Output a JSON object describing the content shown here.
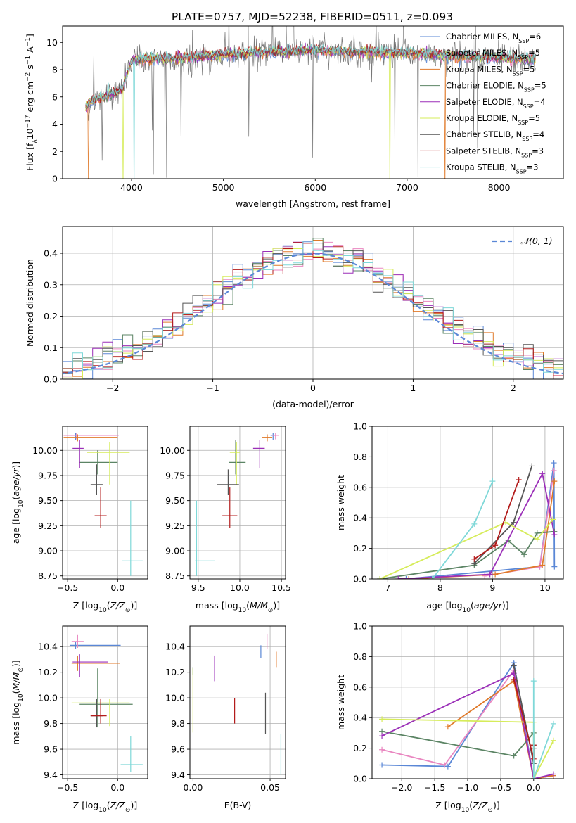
{
  "figure_title": "PLATE=0757, MJD=52238, FIBERID=0511, z=0.093",
  "colors": {
    "Chabrier MILES": "#5a87d6",
    "Salpeter MILES": "#e986c0",
    "Kroupa MILES": "#e07a2a",
    "Chabrier ELODIE": "#5b8464",
    "Salpeter ELODIE": "#9b2fb8",
    "Kroupa ELODIE": "#d6ec5a",
    "Chabrier STELIB": "#555555",
    "Salpeter STELIB": "#b31b1b",
    "Kroupa STELIB": "#7fd8d8",
    "gaussian": "#5a87d6",
    "grid": "#b0b0b0"
  },
  "chart_data": [
    {
      "id": "spectrum",
      "type": "line",
      "title": "PLATE=0757, MJD=52238, FIBERID=0511, z=0.093",
      "xlabel": "wavelength [Angstrom, rest frame]",
      "ylabel": "Flux [f_λ 10^-17 erg cm^-2 s^-1 A^-1]",
      "xlim": [
        3250,
        8700
      ],
      "ylim": [
        0,
        11.2
      ],
      "xticks": [
        4000,
        5000,
        6000,
        7000,
        8000
      ],
      "yticks": [
        0,
        2,
        4,
        6,
        8,
        10
      ],
      "grid": false,
      "legend_position": "top-right",
      "legend": [
        {
          "name": "Chabrier MILES",
          "n_ssp": "6"
        },
        {
          "name": "Salpeter MILES",
          "n_ssp": "5"
        },
        {
          "name": "Kroupa MILES",
          "n_ssp": "5"
        },
        {
          "name": "Chabrier ELODIE",
          "n_ssp": "5"
        },
        {
          "name": "Salpeter ELODIE",
          "n_ssp": "4"
        },
        {
          "name": "Kroupa ELODIE",
          "n_ssp": "5"
        },
        {
          "name": "Chabrier STELIB",
          "n_ssp": "4"
        },
        {
          "name": "Salpeter STELIB",
          "n_ssp": "3"
        },
        {
          "name": "Kroupa STELIB",
          "n_ssp": "3"
        }
      ],
      "data_trend": {
        "x": [
          3500,
          3600,
          3700,
          3800,
          3900,
          4000,
          4200,
          4500,
          5000,
          5500,
          6000,
          6500,
          7000,
          7500,
          8000,
          8400
        ],
        "y": [
          5.2,
          5.8,
          6.0,
          6.2,
          6.4,
          8.6,
          8.7,
          8.7,
          9.0,
          9.3,
          9.4,
          9.3,
          9.2,
          9.0,
          8.9,
          8.7
        ]
      },
      "model_trend": {
        "x": [
          3500,
          3600,
          3700,
          3800,
          3900,
          4000,
          4200,
          4500,
          5000,
          5500,
          6000,
          6500,
          7000,
          7500,
          8000,
          8400
        ],
        "y": [
          5.3,
          5.8,
          6.0,
          6.3,
          6.5,
          8.7,
          8.8,
          8.8,
          9.1,
          9.3,
          9.4,
          9.3,
          9.2,
          9.0,
          8.9,
          8.7
        ]
      }
    },
    {
      "id": "residuals",
      "type": "histogram",
      "xlabel": "(data-model)/error",
      "ylabel": "Normed distribution",
      "xlim": [
        -2.5,
        2.5
      ],
      "ylim": [
        0,
        0.485
      ],
      "xticks": [
        -2,
        -1,
        0,
        1,
        2
      ],
      "yticks": [
        0.0,
        0.1,
        0.2,
        0.3,
        0.4
      ],
      "grid": true,
      "bin_width": 0.1,
      "curve_label": "𝒩(0, 1)",
      "legend_position": "top-right"
    },
    {
      "id": "age-vs-Z",
      "type": "errorbar",
      "xlabel": "Z [log10(Z/Z⊙)]",
      "ylabel": "age [log10(age/yr)]",
      "xlim": [
        -0.55,
        0.3
      ],
      "ylim": [
        8.72,
        10.24
      ],
      "xticks": [
        -0.5,
        0.0
      ],
      "yticks": [
        8.75,
        9.0,
        9.25,
        9.5,
        9.75,
        10.0
      ],
      "points": [
        {
          "model": "Chabrier MILES",
          "x": -0.42,
          "xerr": [
            0.05,
            0.04
          ],
          "y": 10.15,
          "yerr": [
            0.05,
            0.02
          ]
        },
        {
          "model": "Salpeter MILES",
          "x": -0.41,
          "xerr": [
            0.13,
            0.42
          ],
          "y": 10.15,
          "yerr": [
            0.04,
            0.02
          ]
        },
        {
          "model": "Kroupa MILES",
          "x": -0.4,
          "xerr": [
            0.14,
            0.4
          ],
          "y": 10.13,
          "yerr": [
            0.04,
            0.03
          ]
        },
        {
          "model": "Chabrier ELODIE",
          "x": -0.2,
          "xerr": [
            0.18,
            0.2
          ],
          "y": 9.88,
          "yerr": [
            0.12,
            0.12
          ]
        },
        {
          "model": "Salpeter ELODIE",
          "x": -0.38,
          "xerr": [
            0.07,
            0.04
          ],
          "y": 10.02,
          "yerr": [
            0.2,
            0.08
          ]
        },
        {
          "model": "Kroupa ELODIE",
          "x": -0.08,
          "xerr": [
            0.23,
            0.2
          ],
          "y": 9.98,
          "yerr": [
            0.32,
            0.1
          ]
        },
        {
          "model": "Chabrier STELIB",
          "x": -0.21,
          "xerr": [
            0.06,
            0.06
          ],
          "y": 9.66,
          "yerr": [
            0.1,
            0.2
          ]
        },
        {
          "model": "Salpeter STELIB",
          "x": -0.17,
          "xerr": [
            0.06,
            0.06
          ],
          "y": 9.35,
          "yerr": [
            0.12,
            0.28
          ]
        },
        {
          "model": "Kroupa STELIB",
          "x": 0.13,
          "xerr": [
            0.09,
            0.12
          ],
          "y": 8.9,
          "yerr": [
            0.15,
            0.6
          ]
        }
      ]
    },
    {
      "id": "age-vs-mass",
      "type": "errorbar",
      "xlabel": "mass [log10(M/M⊙)]",
      "ylabel": "",
      "xlim": [
        9.4,
        10.55
      ],
      "ylim": [
        8.72,
        10.24
      ],
      "xticks": [
        9.5,
        10.0,
        10.5
      ],
      "yticks": [
        8.75,
        9.0,
        9.25,
        9.5,
        9.75,
        10.0
      ],
      "points": [
        {
          "model": "Chabrier MILES",
          "x": 10.4,
          "xerr": [
            0.03,
            0.03
          ],
          "y": 10.15,
          "yerr": [
            0.05,
            0.02
          ]
        },
        {
          "model": "Salpeter MILES",
          "x": 10.43,
          "xerr": [
            0.04,
            0.04
          ],
          "y": 10.15,
          "yerr": [
            0.04,
            0.02
          ]
        },
        {
          "model": "Kroupa MILES",
          "x": 10.33,
          "xerr": [
            0.06,
            0.06
          ],
          "y": 10.13,
          "yerr": [
            0.04,
            0.03
          ]
        },
        {
          "model": "Chabrier ELODIE",
          "x": 9.95,
          "xerr": [
            0.08,
            0.12
          ],
          "y": 9.88,
          "yerr": [
            0.12,
            0.22
          ]
        },
        {
          "model": "Salpeter ELODIE",
          "x": 10.24,
          "xerr": [
            0.08,
            0.06
          ],
          "y": 10.02,
          "yerr": [
            0.2,
            0.08
          ]
        },
        {
          "model": "Kroupa ELODIE",
          "x": 9.96,
          "xerr": [
            0.08,
            0.04
          ],
          "y": 9.98,
          "yerr": [
            0.32,
            0.1
          ]
        },
        {
          "model": "Chabrier STELIB",
          "x": 9.86,
          "xerr": [
            0.13,
            0.13
          ],
          "y": 9.66,
          "yerr": [
            0.1,
            0.15
          ]
        },
        {
          "model": "Salpeter STELIB",
          "x": 9.88,
          "xerr": [
            0.09,
            0.09
          ],
          "y": 9.35,
          "yerr": [
            0.12,
            0.28
          ]
        },
        {
          "model": "Kroupa STELIB",
          "x": 9.48,
          "xerr": [
            0.02,
            0.22
          ],
          "y": 8.9,
          "yerr": [
            0.15,
            0.6
          ]
        }
      ]
    },
    {
      "id": "mass-weight-vs-age",
      "type": "line",
      "xlabel": "age [log10(age/yr)]",
      "ylabel": "mass weight",
      "xlim": [
        6.7,
        10.35
      ],
      "ylim": [
        0,
        1
      ],
      "xticks": [
        7,
        8,
        9,
        10
      ],
      "yticks": [
        0.0,
        0.2,
        0.4,
        0.6,
        0.8,
        1.0
      ],
      "series": [
        {
          "model": "Chabrier MILES",
          "x": [
            7.35,
            9.9,
            10.17,
            10.18
          ],
          "y": [
            0.0,
            0.08,
            0.76,
            0.08
          ]
        },
        {
          "model": "Salpeter MILES",
          "x": [
            8.85,
            9.9,
            10.17
          ],
          "y": [
            0.02,
            0.08,
            0.71
          ]
        },
        {
          "model": "Kroupa MILES",
          "x": [
            7.4,
            9.05,
            9.95,
            10.18
          ],
          "y": [
            0.0,
            0.03,
            0.09,
            0.64
          ]
        },
        {
          "model": "Chabrier ELODIE",
          "x": [
            6.85,
            8.65,
            9.3,
            9.6,
            9.85,
            10.18
          ],
          "y": [
            0.0,
            0.09,
            0.25,
            0.16,
            0.3,
            0.31
          ]
        },
        {
          "model": "Salpeter ELODIE",
          "x": [
            7.2,
            8.95,
            9.95,
            10.18
          ],
          "y": [
            0.0,
            0.03,
            0.69,
            0.29
          ]
        },
        {
          "model": "Kroupa ELODIE",
          "x": [
            6.85,
            9.25,
            9.85,
            10.15
          ],
          "y": [
            0.0,
            0.37,
            0.26,
            0.39
          ]
        },
        {
          "model": "Chabrier STELIB",
          "x": [
            8.65,
            9.4,
            9.75
          ],
          "y": [
            0.1,
            0.37,
            0.74
          ]
        },
        {
          "model": "Salpeter STELIB",
          "x": [
            8.65,
            9.05,
            9.5
          ],
          "y": [
            0.13,
            0.22,
            0.65
          ]
        },
        {
          "model": "Kroupa STELIB",
          "x": [
            7.85,
            8.65,
            9.0
          ],
          "y": [
            0.0,
            0.36,
            0.64
          ]
        }
      ]
    },
    {
      "id": "mass-vs-Z",
      "type": "errorbar",
      "xlabel": "Z [log10(Z/Z⊙)]",
      "ylabel": "mass [log10(M/M⊙)]",
      "xlim": [
        -0.55,
        0.3
      ],
      "ylim": [
        9.37,
        10.56
      ],
      "xticks": [
        -0.5,
        0.0
      ],
      "yticks": [
        9.4,
        9.6,
        9.8,
        10.0,
        10.2,
        10.4
      ],
      "points": [
        {
          "model": "Chabrier MILES",
          "x": -0.42,
          "xerr": [
            0.06,
            0.45
          ],
          "y": 10.41,
          "yerr": [
            0.03,
            0.03
          ]
        },
        {
          "model": "Salpeter MILES",
          "x": -0.4,
          "xerr": [
            0.06,
            0.06
          ],
          "y": 10.44,
          "yerr": [
            0.05,
            0.05
          ]
        },
        {
          "model": "Kroupa MILES",
          "x": -0.4,
          "xerr": [
            0.06,
            0.42
          ],
          "y": 10.27,
          "yerr": [
            0.06,
            0.06
          ]
        },
        {
          "model": "Chabrier ELODIE",
          "x": -0.2,
          "xerr": [
            0.18,
            0.35
          ],
          "y": 9.95,
          "yerr": [
            0.18,
            0.28
          ]
        },
        {
          "model": "Salpeter ELODIE",
          "x": -0.38,
          "xerr": [
            0.07,
            0.28
          ],
          "y": 10.28,
          "yerr": [
            0.12,
            0.06
          ]
        },
        {
          "model": "Kroupa ELODIE",
          "x": -0.08,
          "xerr": [
            0.38,
            0.2
          ],
          "y": 9.96,
          "yerr": [
            0.18,
            0.03
          ]
        },
        {
          "model": "Chabrier STELIB",
          "x": -0.21,
          "xerr": [
            0.06,
            0.06
          ],
          "y": 9.86,
          "yerr": [
            0.09,
            0.13
          ]
        },
        {
          "model": "Salpeter STELIB",
          "x": -0.17,
          "xerr": [
            0.1,
            0.06
          ],
          "y": 9.86,
          "yerr": [
            0.06,
            0.13
          ]
        },
        {
          "model": "Kroupa STELIB",
          "x": 0.13,
          "xerr": [
            0.1,
            0.12
          ],
          "y": 9.48,
          "yerr": [
            0.06,
            0.22
          ]
        }
      ]
    },
    {
      "id": "mass-vs-ebv",
      "type": "errorbar",
      "xlabel": "E(B-V)",
      "ylabel": "",
      "xlim": [
        -0.002,
        0.06
      ],
      "ylim": [
        9.37,
        10.56
      ],
      "xticks": [
        0.0,
        0.05
      ],
      "yticks": [
        9.4,
        9.6,
        9.8,
        10.0,
        10.2,
        10.4
      ],
      "points": [
        {
          "model": "Chabrier MILES",
          "x": 0.044,
          "y": 10.36,
          "yerr": [
            0.05,
            0.05
          ]
        },
        {
          "model": "Salpeter MILES",
          "x": 0.048,
          "y": 10.44,
          "yerr": [
            0.06,
            0.06
          ]
        },
        {
          "model": "Kroupa MILES",
          "x": 0.054,
          "y": 10.3,
          "yerr": [
            0.06,
            0.06
          ]
        },
        {
          "model": "Chabrier ELODIE",
          "x": 0.0,
          "y": 10.21,
          "yerr": [
            0.03,
            0.03
          ]
        },
        {
          "model": "Salpeter ELODIE",
          "x": 0.014,
          "y": 10.23,
          "yerr": [
            0.1,
            0.1
          ]
        },
        {
          "model": "Kroupa ELODIE",
          "x": 0.0,
          "y": 9.98,
          "yerr": [
            0.25,
            0.25
          ]
        },
        {
          "model": "Chabrier STELIB",
          "x": 0.047,
          "y": 9.88,
          "yerr": [
            0.16,
            0.16
          ]
        },
        {
          "model": "Salpeter STELIB",
          "x": 0.027,
          "y": 9.9,
          "yerr": [
            0.1,
            0.1
          ]
        },
        {
          "model": "Kroupa STELIB",
          "x": 0.057,
          "y": 9.56,
          "yerr": [
            0.16,
            0.16
          ]
        }
      ]
    },
    {
      "id": "mass-weight-vs-Z",
      "type": "line",
      "xlabel": "Z [log10(Z/Z⊙)]",
      "ylabel": "mass weight",
      "xlim": [
        -2.45,
        0.45
      ],
      "ylim": [
        0,
        1
      ],
      "xticks": [
        -2.0,
        -1.5,
        -1.0,
        -0.5,
        0.0
      ],
      "yticks": [
        0.0,
        0.2,
        0.4,
        0.6,
        0.8,
        1.0
      ],
      "series": [
        {
          "model": "Chabrier MILES",
          "x": [
            -2.3,
            -1.3,
            -0.3,
            0.0
          ],
          "y": [
            0.09,
            0.08,
            0.76,
            0.0
          ]
        },
        {
          "model": "Salpeter MILES",
          "x": [
            -2.3,
            -1.35,
            -0.3,
            0.0,
            0.3
          ],
          "y": [
            0.19,
            0.09,
            0.71,
            0.0,
            0.02
          ]
        },
        {
          "model": "Kroupa MILES",
          "x": [
            -1.3,
            -0.3,
            0.0,
            0.3
          ],
          "y": [
            0.34,
            0.64,
            0.0,
            0.02
          ]
        },
        {
          "model": "Chabrier ELODIE",
          "x": [
            -2.3,
            -0.3,
            0.0,
            0.0
          ],
          "y": [
            0.31,
            0.15,
            0.3,
            0.22
          ]
        },
        {
          "model": "Salpeter ELODIE",
          "x": [
            -2.3,
            -0.3,
            0.0,
            0.3
          ],
          "y": [
            0.28,
            0.69,
            0.0,
            0.03
          ]
        },
        {
          "model": "Kroupa ELODIE",
          "x": [
            -2.3,
            0.0,
            0.0,
            0.3
          ],
          "y": [
            0.39,
            0.37,
            0.0,
            0.25
          ]
        },
        {
          "model": "Chabrier STELIB",
          "x": [
            -0.3,
            0.0,
            0.0
          ],
          "y": [
            0.74,
            0.1,
            0.2
          ]
        },
        {
          "model": "Salpeter STELIB",
          "x": [
            -0.3,
            0.0,
            0.0
          ],
          "y": [
            0.65,
            0.13,
            0.22
          ]
        },
        {
          "model": "Kroupa STELIB",
          "x": [
            0.0,
            0.0,
            0.3
          ],
          "y": [
            0.64,
            0.0,
            0.36
          ]
        }
      ]
    }
  ]
}
